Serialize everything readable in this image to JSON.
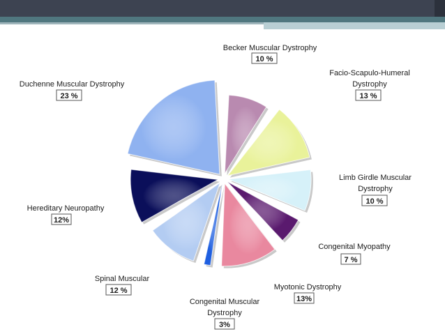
{
  "chart_data": {
    "type": "pie",
    "title": "",
    "legend": "none",
    "slices": [
      {
        "label": "Becker Muscular Dystrophy",
        "value": 10,
        "value_label": "10 %",
        "color": "#b98ab0"
      },
      {
        "label": "Facio-Scapulo-Humeral Dystrophy",
        "value": 13,
        "value_label": "13 %",
        "color": "#e9f29a"
      },
      {
        "label": "Limb Girdle Muscular Dystrophy",
        "value": 10,
        "value_label": "10 %",
        "color": "#d6f1f9"
      },
      {
        "label": "Congenital Myopathy",
        "value": 7,
        "value_label": "7 %",
        "color": "#5a1a6e"
      },
      {
        "label": "Myotonic Dystrophy",
        "value": 13,
        "value_label": "13%",
        "color": "#e9889f"
      },
      {
        "label": "Congenital Muscular Dystrophy",
        "value": 3,
        "value_label": "3%",
        "color": "#1f5fe0"
      },
      {
        "label": "Spinal Muscular",
        "value": 12,
        "value_label": "12 %",
        "color": "#b3ccf2"
      },
      {
        "label": "Hereditary Neuropathy",
        "value": 12,
        "value_label": "12%",
        "color": "#0b0f5a"
      },
      {
        "label": "Duchenne Muscular Dystrophy",
        "value": 23,
        "value_label": "23 %",
        "color": "#8fb2f0"
      }
    ]
  }
}
